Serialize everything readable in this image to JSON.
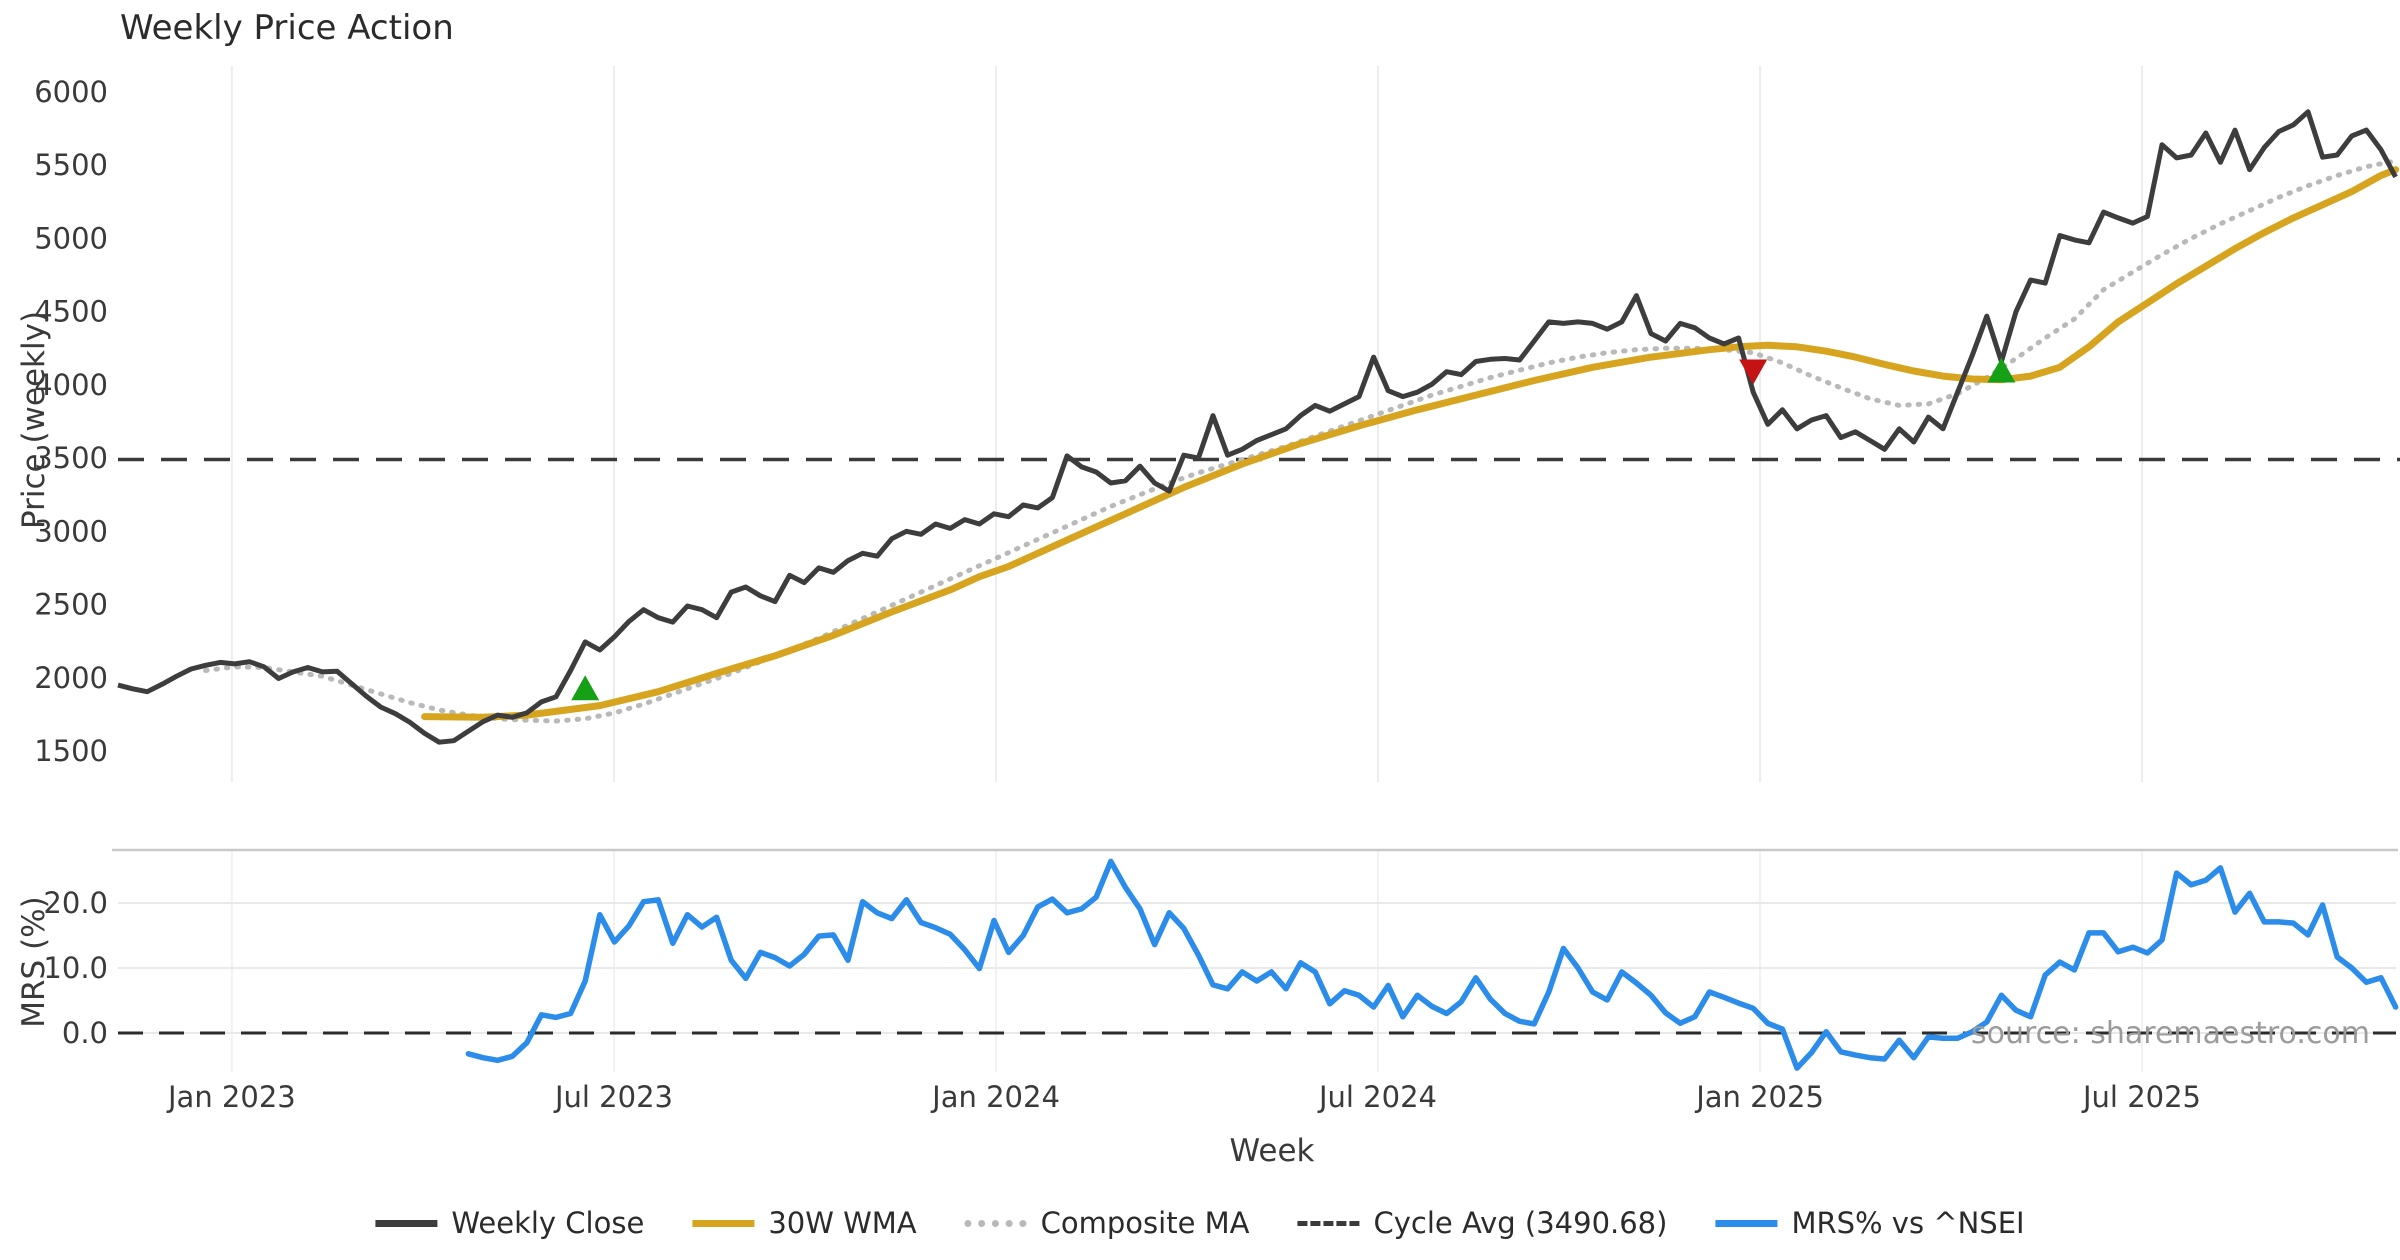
{
  "title": "Weekly Price Action",
  "watermark": "source: sharemaestro.com",
  "axes": {
    "x": {
      "label": "Week",
      "tick_labels": [
        "Jan 2023",
        "Jul 2023",
        "Jan 2024",
        "Jul 2024",
        "Jan 2025",
        "Jul 2025"
      ],
      "tick_week_index": [
        7.8,
        33.97,
        60.14,
        86.3,
        112.47,
        138.63
      ]
    },
    "price": {
      "label": "Price (weekly)",
      "ticks": [
        6000,
        5500,
        5000,
        4500,
        4000,
        3500,
        3000,
        2500,
        2000,
        1500
      ],
      "ylim": [
        1500,
        6000
      ]
    },
    "mrs": {
      "label": "MRS (%)",
      "ticks": [
        20,
        10,
        0
      ],
      "tick_labels": [
        "20.0",
        "10.0",
        "0.0"
      ]
    }
  },
  "legend": [
    {
      "label": "Weekly Close",
      "style": "solid",
      "color": "#3d3d3d"
    },
    {
      "label": "30W WMA",
      "style": "solid",
      "color": "#d6a41e"
    },
    {
      "label": "Composite MA",
      "style": "dotted",
      "color": "#b9b9b9"
    },
    {
      "label": "Cycle Avg (3490.68)",
      "style": "dashed",
      "color": "#3a3a3a"
    },
    {
      "label": "MRS% vs ^NSEI",
      "style": "solid",
      "color": "#2b8cea"
    }
  ],
  "colors": {
    "weekly_close": "#3d3d3d",
    "wma30": "#d6a41e",
    "composite": "#b9b9b9",
    "cycle_avg": "#3a3a3a",
    "mrs": "#2b8cea",
    "buy_marker": "#16a016",
    "sell_marker": "#c51212",
    "gridline": "#ededed",
    "separator": "#c9c9c9",
    "tick_text": "#3a3a3a"
  },
  "chart_data": {
    "type": "line",
    "x_unit": "week_index",
    "weeks_total": 157,
    "price_panel": {
      "ylabel": "Price (weekly)",
      "ylim": [
        1500,
        6000
      ],
      "cycle_avg": 3490.68,
      "series": [
        {
          "name": "Weekly Close",
          "style": "solid",
          "color": "#3d3d3d",
          "start_week": 0,
          "values": [
            1950,
            1925,
            1905,
            1955,
            2010,
            2060,
            2085,
            2105,
            2095,
            2110,
            2075,
            1995,
            2040,
            2070,
            2040,
            2045,
            1960,
            1875,
            1800,
            1755,
            1695,
            1620,
            1560,
            1570,
            1635,
            1700,
            1745,
            1730,
            1760,
            1835,
            1870,
            2050,
            2245,
            2190,
            2280,
            2385,
            2465,
            2410,
            2380,
            2490,
            2465,
            2410,
            2585,
            2620,
            2560,
            2520,
            2700,
            2650,
            2750,
            2720,
            2800,
            2850,
            2830,
            2950,
            3000,
            2980,
            3050,
            3020,
            3080,
            3050,
            3120,
            3100,
            3180,
            3160,
            3230,
            3515,
            3440,
            3405,
            3330,
            3345,
            3445,
            3330,
            3275,
            3520,
            3500,
            3790,
            3520,
            3560,
            3620,
            3660,
            3700,
            3790,
            3860,
            3820,
            3870,
            3920,
            4190,
            3960,
            3920,
            3950,
            4005,
            4090,
            4070,
            4160,
            4175,
            4180,
            4170,
            4300,
            4430,
            4420,
            4430,
            4420,
            4380,
            4430,
            4610,
            4350,
            4300,
            4420,
            4390,
            4320,
            4280,
            4320,
            3950,
            3730,
            3830,
            3700,
            3760,
            3790,
            3640,
            3680,
            3620,
            3560,
            3700,
            3610,
            3780,
            3700,
            3950,
            4200,
            4470,
            4160,
            4500,
            4716,
            4695,
            5020,
            4990,
            4970,
            5180,
            5140,
            5105,
            5150,
            5640,
            5550,
            5570,
            5720,
            5520,
            5740,
            5470,
            5620,
            5730,
            5775,
            5865,
            5555,
            5570,
            5700,
            5740,
            5605,
            5420
          ]
        },
        {
          "name": "30W WMA",
          "style": "solid",
          "color": "#d6a41e",
          "anchor_weeks": [
            21,
            25,
            28,
            33,
            37,
            41,
            45,
            49,
            53,
            57,
            59,
            61,
            65,
            69,
            73,
            77,
            81,
            85,
            89,
            93,
            97,
            101,
            105,
            109,
            111,
            113,
            115,
            117,
            119,
            121,
            123,
            125,
            127,
            129,
            131,
            133,
            135,
            137,
            139,
            141,
            143,
            145,
            147,
            149,
            151,
            153,
            155,
            156
          ],
          "anchor_values": [
            1735,
            1731,
            1745,
            1810,
            1905,
            2030,
            2150,
            2290,
            2450,
            2600,
            2690,
            2760,
            2940,
            3120,
            3300,
            3460,
            3600,
            3720,
            3830,
            3930,
            4030,
            4120,
            4190,
            4240,
            4260,
            4270,
            4260,
            4230,
            4190,
            4140,
            4095,
            4060,
            4040,
            4035,
            4060,
            4120,
            4260,
            4430,
            4560,
            4690,
            4810,
            4930,
            5040,
            5140,
            5230,
            5320,
            5430,
            5470
          ]
        },
        {
          "name": "Composite MA",
          "style": "dotted",
          "color": "#b9b9b9",
          "anchor_weeks": [
            6,
            8,
            10,
            12,
            14,
            16,
            18,
            20,
            22,
            24,
            26,
            28,
            30,
            32,
            34,
            36,
            38,
            40,
            42,
            44,
            46,
            48,
            50,
            52,
            54,
            56,
            58,
            60,
            62,
            64,
            66,
            68,
            70,
            72,
            74,
            76,
            78,
            80,
            82,
            84,
            86,
            88,
            90,
            92,
            94,
            96,
            98,
            100,
            102,
            104,
            106,
            108,
            110,
            112,
            114,
            116,
            118,
            120,
            122,
            124,
            126,
            128,
            130,
            132,
            134,
            136,
            138,
            140,
            142,
            144,
            146,
            148,
            150,
            152,
            154,
            156
          ],
          "anchor_values": [
            2050,
            2075,
            2070,
            2040,
            2010,
            1950,
            1890,
            1830,
            1780,
            1745,
            1720,
            1710,
            1705,
            1720,
            1760,
            1820,
            1890,
            1960,
            2030,
            2110,
            2190,
            2270,
            2360,
            2450,
            2540,
            2630,
            2720,
            2810,
            2900,
            2990,
            3080,
            3170,
            3250,
            3330,
            3400,
            3460,
            3520,
            3580,
            3650,
            3720,
            3790,
            3860,
            3930,
            3990,
            4050,
            4100,
            4150,
            4190,
            4220,
            4240,
            4250,
            4250,
            4240,
            4220,
            4150,
            4060,
            3980,
            3905,
            3860,
            3870,
            3940,
            4050,
            4180,
            4320,
            4450,
            4650,
            4770,
            4890,
            5000,
            5100,
            5190,
            5280,
            5360,
            5430,
            5490,
            5530
          ]
        }
      ],
      "markers": [
        {
          "week": 32,
          "price": 1915,
          "shape": "triangle-up",
          "color": "#16a016",
          "meaning": "buy signal"
        },
        {
          "week": 112,
          "price": 4105,
          "shape": "triangle-down",
          "color": "#c51212",
          "meaning": "sell signal"
        },
        {
          "week": 129,
          "price": 4085,
          "shape": "triangle-up",
          "color": "#16a016",
          "meaning": "buy signal"
        }
      ]
    },
    "mrs_panel": {
      "ylabel": "MRS (%)",
      "zero_line": 0,
      "series": [
        {
          "name": "MRS% vs ^NSEI",
          "style": "solid",
          "color": "#2b8cea",
          "start_week": 24,
          "values": [
            -3.2,
            -3.8,
            -4.2,
            -3.6,
            -1.5,
            2.8,
            2.4,
            3.0,
            8.0,
            18.2,
            14.0,
            16.5,
            20.2,
            20.5,
            13.8,
            18.2,
            16.3,
            17.8,
            11.2,
            8.4,
            12.4,
            11.6,
            10.3,
            12.1,
            14.9,
            15.1,
            11.2,
            20.2,
            18.5,
            17.6,
            20.5,
            17.0,
            16.2,
            15.2,
            12.8,
            9.9,
            17.3,
            12.4,
            15.0,
            19.4,
            20.6,
            18.5,
            19.1,
            20.9,
            26.4,
            22.4,
            19.1,
            13.6,
            18.5,
            16.1,
            12.0,
            7.4,
            6.8,
            9.4,
            8.0,
            9.4,
            6.8,
            10.8,
            9.4,
            4.5,
            6.5,
            5.8,
            4.0,
            7.3,
            2.5,
            5.8,
            4.1,
            3.0,
            4.8,
            8.5,
            5.2,
            3.0,
            1.8,
            1.4,
            6.3,
            13.0,
            10.0,
            6.3,
            5.1,
            9.4,
            7.7,
            5.8,
            3.1,
            1.5,
            2.5,
            6.3,
            5.5,
            4.6,
            3.8,
            1.5,
            0.6,
            -5.4,
            -3.0,
            0.2,
            -2.9,
            -3.4,
            -3.8,
            -4.0,
            -1.1,
            -3.8,
            -0.6,
            -0.8,
            -0.8,
            0.2,
            1.7,
            5.8,
            3.5,
            2.5,
            8.9,
            10.9,
            9.7,
            15.4,
            15.4,
            12.5,
            13.2,
            12.3,
            14.3,
            24.6,
            22.8,
            23.5,
            25.4,
            18.6,
            21.5,
            17.1,
            17.1,
            16.9,
            15.1,
            19.7,
            11.7,
            10.0,
            7.8,
            8.5,
            4.0
          ]
        }
      ]
    }
  }
}
